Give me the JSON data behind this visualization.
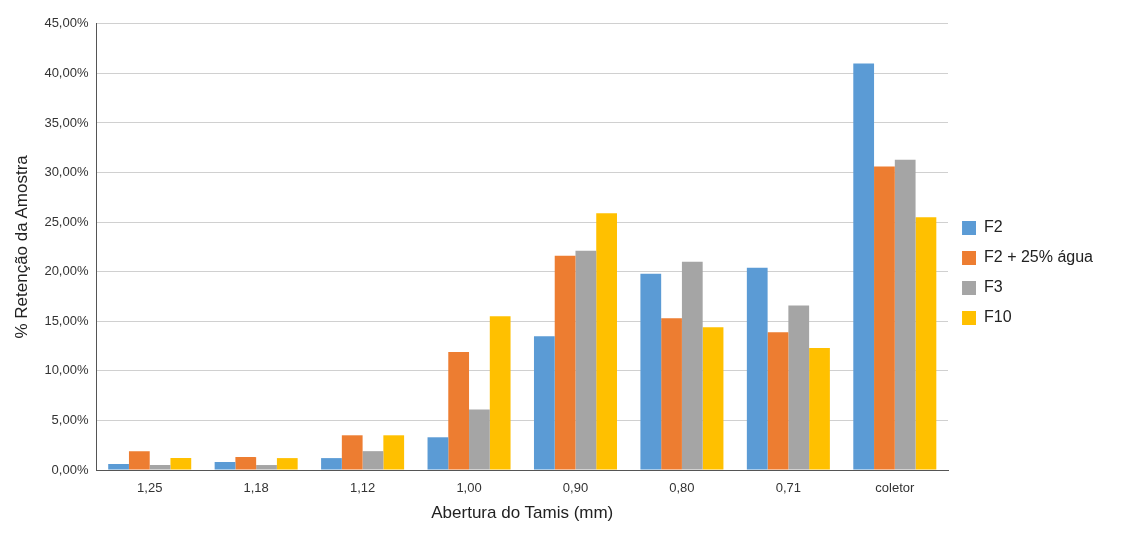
{
  "chart_data": {
    "type": "bar",
    "xlabel": "Abertura do Tamis (mm)",
    "ylabel": "% Retenção da Amostra",
    "categories": [
      "1,25",
      "1,18",
      "1,12",
      "1,00",
      "0,90",
      "0,80",
      "0,71",
      "coletor"
    ],
    "series": [
      {
        "name": "F2",
        "color": "#5b9bd5",
        "values": [
          0.6,
          0.8,
          1.2,
          3.3,
          13.5,
          19.8,
          20.4,
          41.0
        ]
      },
      {
        "name": "F2 + 25% água",
        "color": "#ed7d31",
        "values": [
          1.9,
          1.3,
          3.5,
          11.9,
          21.6,
          15.3,
          13.9,
          30.6
        ]
      },
      {
        "name": "F3",
        "color": "#a5a5a5",
        "values": [
          0.5,
          0.5,
          1.9,
          6.1,
          22.1,
          21.0,
          16.6,
          31.3
        ]
      },
      {
        "name": "F10",
        "color": "#ffc000",
        "values": [
          1.2,
          1.2,
          3.5,
          15.5,
          25.9,
          14.4,
          12.3,
          25.5
        ]
      }
    ],
    "ylim": [
      0,
      45
    ],
    "yticks": [
      {
        "value": 0,
        "label": "0,00%"
      },
      {
        "value": 5,
        "label": "5,00%"
      },
      {
        "value": 10,
        "label": "10,00%"
      },
      {
        "value": 15,
        "label": "15,00%"
      },
      {
        "value": 20,
        "label": "20,00%"
      },
      {
        "value": 25,
        "label": "25,00%"
      },
      {
        "value": 30,
        "label": "30,00%"
      },
      {
        "value": 35,
        "label": "35,00%"
      },
      {
        "value": 40,
        "label": "40,00%"
      },
      {
        "value": 45,
        "label": "45,00%"
      }
    ],
    "grid": "y",
    "legend": "right"
  }
}
